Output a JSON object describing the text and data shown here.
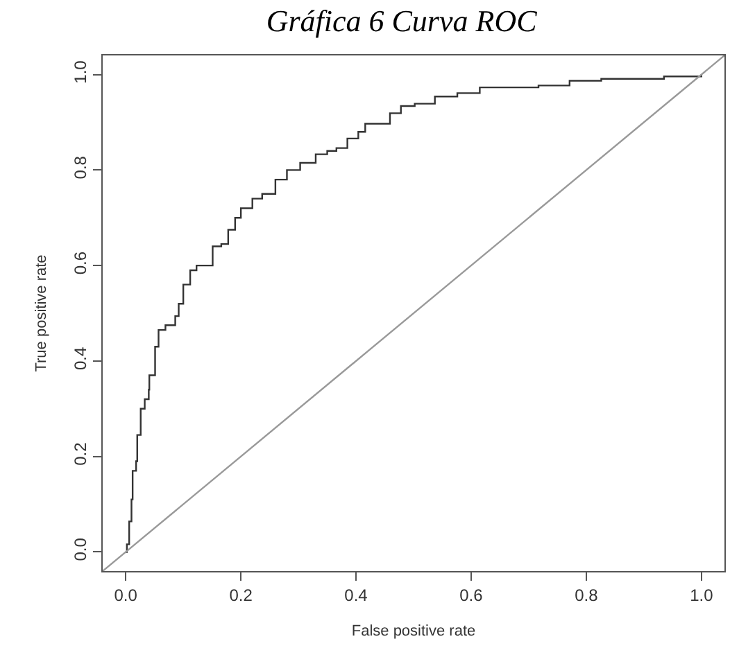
{
  "chart_data": {
    "type": "line",
    "title": "Gráfica 6 Curva ROC",
    "xlabel": "False positive rate",
    "ylabel": "True positive rate",
    "series": [
      {
        "type": "step",
        "color": "#333333",
        "x": [
          0,
          0.002,
          0.006,
          0.01,
          0.012,
          0.018,
          0.02,
          0.026,
          0.033,
          0.04,
          0.041,
          0.049,
          0.051,
          0.057,
          0.069,
          0.086,
          0.092,
          0.1,
          0.112,
          0.123,
          0.141,
          0.151,
          0.166,
          0.178,
          0.19,
          0.2,
          0.216,
          0.22,
          0.237,
          0.26,
          0.28,
          0.303,
          0.33,
          0.35,
          0.366,
          0.385,
          0.404,
          0.416,
          0.447,
          0.459,
          0.478,
          0.502,
          0.537,
          0.576,
          0.615,
          0.717,
          0.771,
          0.826,
          0.935,
          1.0
        ],
        "values": [
          0,
          0.016,
          0.064,
          0.11,
          0.17,
          0.19,
          0.245,
          0.3,
          0.32,
          0.34,
          0.37,
          0.37,
          0.43,
          0.465,
          0.475,
          0.494,
          0.52,
          0.56,
          0.59,
          0.6,
          0.6,
          0.64,
          0.645,
          0.675,
          0.7,
          0.72,
          0.72,
          0.74,
          0.75,
          0.78,
          0.8,
          0.815,
          0.833,
          0.84,
          0.846,
          0.866,
          0.88,
          0.897,
          0.897,
          0.919,
          0.934,
          0.939,
          0.954,
          0.961,
          0.973,
          0.977,
          0.987,
          0.991,
          0.996,
          1.0
        ]
      },
      {
        "color": "#999999",
        "x": [
          -0.04,
          1.04
        ],
        "values": [
          -0.04,
          1.04
        ]
      }
    ],
    "xlim": [
      -0.04,
      1.04
    ],
    "ylim": [
      -0.04,
      1.04
    ],
    "xticks": [
      {
        "value": 0,
        "label": "0.0"
      },
      0.2,
      0.4,
      0.6,
      0.8,
      {
        "value": 1,
        "label": "1.0"
      }
    ],
    "yticks": [
      {
        "value": 0,
        "label": "0.0"
      },
      0.2,
      0.4,
      0.6,
      0.8,
      {
        "value": 1,
        "label": "1.0"
      }
    ],
    "marker": "none",
    "line_style": "solid"
  }
}
